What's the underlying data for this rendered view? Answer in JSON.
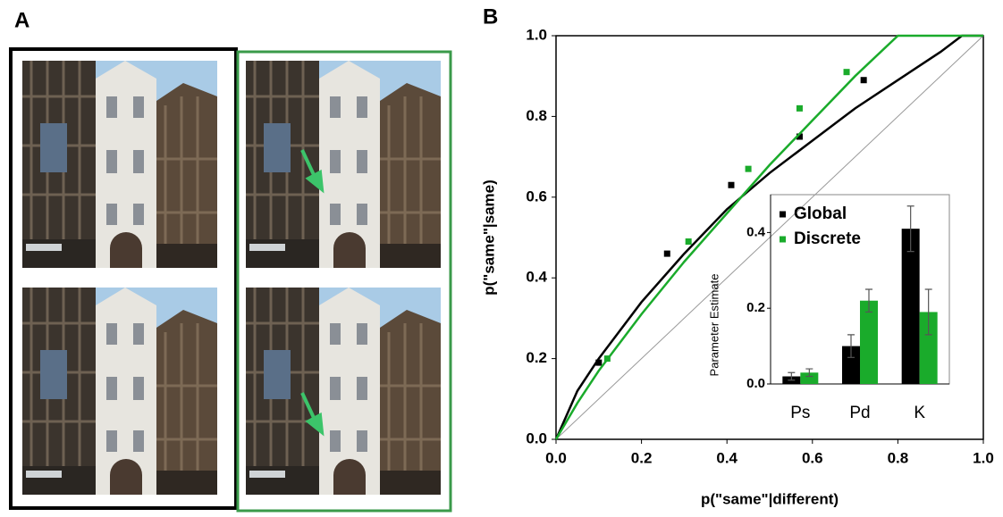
{
  "figure_labels": [
    "A",
    "B"
  ],
  "chart_data": [
    {
      "type": "scatter-curve",
      "xlabel": "p(\"same\"|different)",
      "ylabel": "p(\"same\"|same)",
      "xlim": [
        0,
        1
      ],
      "ylim": [
        0,
        1
      ],
      "xticks": [
        {
          "value": 0,
          "label": "0.0"
        },
        {
          "value": 0.2,
          "label": "0.2"
        },
        {
          "value": 0.4,
          "label": "0.4"
        },
        {
          "value": 0.6,
          "label": "0.6"
        },
        {
          "value": 0.8,
          "label": "0.8"
        },
        {
          "value": 1,
          "label": "1.0"
        }
      ],
      "yticks": [
        {
          "value": 0,
          "label": "0.0"
        },
        {
          "value": 0.2,
          "label": "0.2"
        },
        {
          "value": 0.4,
          "label": "0.4"
        },
        {
          "value": 0.6,
          "label": "0.6"
        },
        {
          "value": 0.8,
          "label": "0.8"
        },
        {
          "value": 1,
          "label": "1.0"
        }
      ],
      "series": [
        {
          "color": "#000000",
          "x": [
            0.1,
            0.26,
            0.41,
            0.57,
            0.72
          ],
          "values": [
            0.19,
            0.46,
            0.63,
            0.75,
            0.89
          ],
          "curve_x": [
            0,
            0.05,
            0.1,
            0.2,
            0.3,
            0.4,
            0.5,
            0.6,
            0.7,
            0.8,
            0.9,
            0.95,
            1
          ],
          "curve_values": [
            0,
            0.12,
            0.2,
            0.34,
            0.46,
            0.57,
            0.66,
            0.74,
            0.82,
            0.89,
            0.96,
            1,
            1
          ]
        },
        {
          "color": "#1aab2b",
          "x": [
            0.12,
            0.31,
            0.45,
            0.57,
            0.68
          ],
          "values": [
            0.2,
            0.49,
            0.67,
            0.82,
            0.91
          ],
          "curve_x": [
            0,
            0.05,
            0.1,
            0.2,
            0.3,
            0.4,
            0.5,
            0.6,
            0.7,
            0.8,
            1
          ],
          "curve_values": [
            0,
            0.09,
            0.17,
            0.31,
            0.44,
            0.56,
            0.68,
            0.79,
            0.9,
            1,
            1
          ]
        }
      ]
    },
    {
      "type": "bar",
      "ylabel": "Parameter Estimate",
      "categories": [
        "Ps",
        "Pd",
        "K"
      ],
      "ylim": [
        0,
        0.5
      ],
      "yticks": [
        {
          "value": 0,
          "label": "0.0"
        },
        {
          "value": 0.2,
          "label": "0.2"
        },
        {
          "value": 0.4,
          "label": "0.4"
        }
      ],
      "series": [
        {
          "name": "Global",
          "color": "#000000",
          "values": [
            0.02,
            0.1,
            0.41
          ],
          "errors": [
            0.01,
            0.03,
            0.06
          ]
        },
        {
          "name": "Discrete",
          "color": "#1aab2b",
          "values": [
            0.03,
            0.22,
            0.19
          ],
          "errors": [
            0.01,
            0.03,
            0.06
          ]
        }
      ]
    }
  ]
}
